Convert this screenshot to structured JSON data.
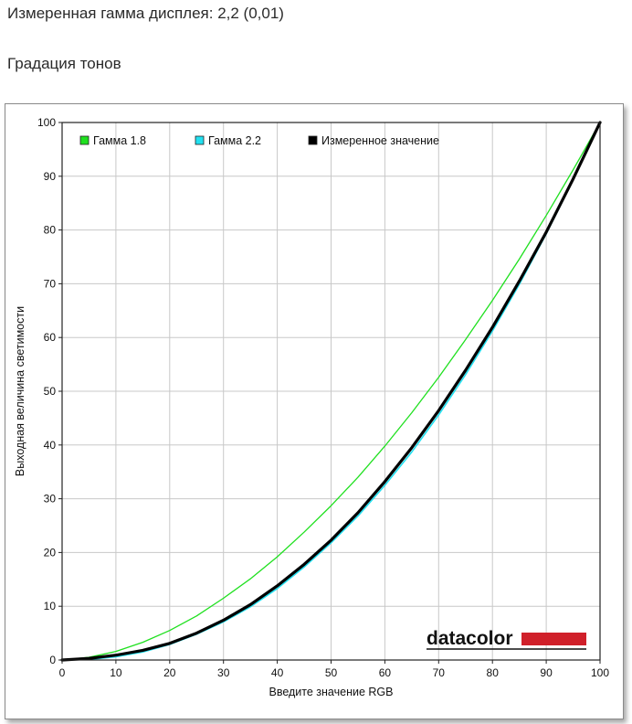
{
  "header": {
    "measured_gamma": "Измеренная гамма дисплея: 2,2 (0,01)",
    "section_title": "Градация тонов"
  },
  "logo": {
    "text": "datacolor",
    "bar_color": "#d0202a"
  },
  "chart_data": {
    "type": "line",
    "title": "",
    "xlabel": "Введите значение RGB",
    "ylabel": "Выходная величина светимости",
    "xlim": [
      0,
      100
    ],
    "ylim": [
      0,
      100
    ],
    "xticks": [
      0,
      10,
      20,
      30,
      40,
      50,
      60,
      70,
      80,
      90,
      100
    ],
    "yticks": [
      0,
      10,
      20,
      30,
      40,
      50,
      60,
      70,
      80,
      90,
      100
    ],
    "grid": true,
    "legend_position": "top",
    "x": [
      0,
      5,
      10,
      15,
      20,
      25,
      30,
      35,
      40,
      45,
      50,
      55,
      60,
      65,
      70,
      75,
      80,
      85,
      90,
      95,
      100
    ],
    "series": [
      {
        "name": "Гамма 1.8",
        "color": "#1fe01f",
        "values": [
          0,
          0.5,
          1.6,
          3.3,
          5.5,
          8.2,
          11.5,
          15.1,
          19.2,
          23.8,
          28.7,
          34.0,
          39.8,
          46.0,
          52.6,
          59.6,
          66.9,
          74.6,
          82.7,
          91.2,
          100
        ]
      },
      {
        "name": "Гамма 2.2",
        "color": "#22e0f0",
        "values": [
          0,
          0.1,
          0.6,
          1.5,
          2.9,
          4.8,
          7.1,
          9.9,
          13.3,
          17.3,
          21.8,
          26.8,
          32.5,
          38.7,
          45.6,
          53.1,
          61.2,
          69.9,
          79.3,
          89.3,
          100
        ]
      },
      {
        "name": "Измеренное значение",
        "color": "#000000",
        "values": [
          0,
          0.3,
          0.9,
          1.8,
          3.1,
          5.0,
          7.4,
          10.3,
          13.8,
          17.8,
          22.3,
          27.4,
          33.2,
          39.5,
          46.4,
          53.9,
          61.9,
          70.5,
          79.6,
          89.5,
          100
        ]
      }
    ]
  }
}
